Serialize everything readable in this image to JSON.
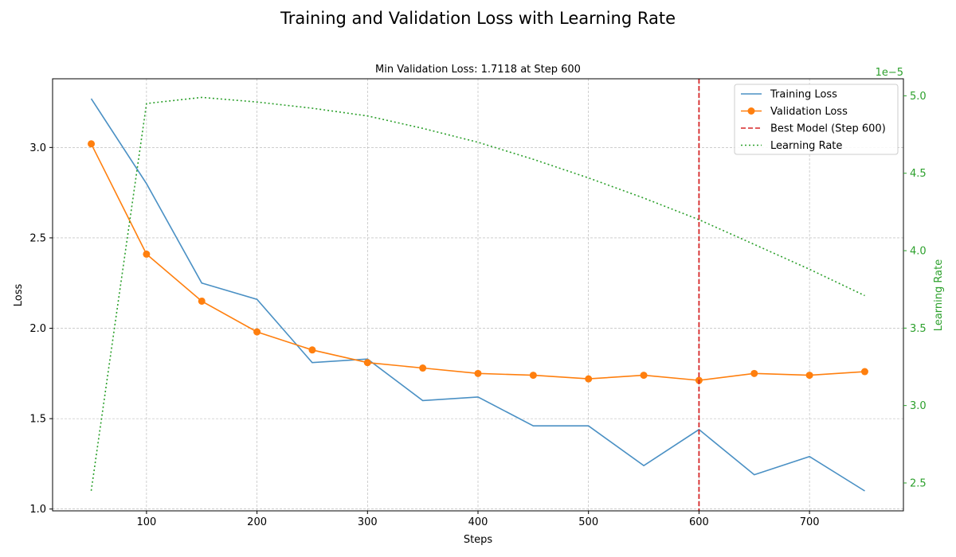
{
  "chart_data": {
    "type": "line",
    "title": "Training and Validation Loss with Learning Rate",
    "subtitle": "Min Validation Loss: 1.7118 at Step 600",
    "xlabel": "Steps",
    "ylabel": "Loss",
    "y2label": "Learning Rate",
    "y2_multiplier_label": "1e−5",
    "xlim": [
      15,
      785
    ],
    "ylim": [
      0.99,
      3.38
    ],
    "y2lim": [
      2.32,
      5.11
    ],
    "x_ticks": [
      100,
      200,
      300,
      400,
      500,
      600,
      700
    ],
    "y_ticks": [
      1.0,
      1.5,
      2.0,
      2.5,
      3.0
    ],
    "y_tick_labels": [
      "1.0",
      "1.5",
      "2.0",
      "2.5",
      "3.0"
    ],
    "y2_ticks": [
      2.5,
      3.0,
      3.5,
      4.0,
      4.5,
      5.0
    ],
    "y2_tick_labels": [
      "2.5",
      "3.0",
      "3.5",
      "4.0",
      "4.5",
      "5.0"
    ],
    "grid": true,
    "legend_position": "top-right",
    "x": [
      50,
      100,
      150,
      200,
      250,
      300,
      350,
      400,
      450,
      500,
      550,
      600,
      650,
      700,
      750
    ],
    "series": [
      {
        "name": "Training Loss",
        "axis": "left",
        "style": "solid",
        "color": "#4a90c4",
        "values": [
          3.27,
          2.8,
          2.25,
          2.16,
          1.81,
          1.83,
          1.6,
          1.62,
          1.46,
          1.46,
          1.24,
          1.44,
          1.19,
          1.29,
          1.1
        ]
      },
      {
        "name": "Validation Loss",
        "axis": "left",
        "style": "solid-marker",
        "color": "#ff7f0e",
        "values": [
          3.02,
          2.41,
          2.15,
          1.98,
          1.88,
          1.81,
          1.78,
          1.75,
          1.74,
          1.72,
          1.74,
          1.7118,
          1.75,
          1.74,
          1.76
        ]
      },
      {
        "name": "Learning Rate",
        "axis": "right",
        "style": "dotted",
        "color": "#2ca02c",
        "values": [
          2.45,
          4.95,
          4.99,
          4.96,
          4.92,
          4.87,
          4.79,
          4.7,
          4.59,
          4.47,
          4.34,
          4.2,
          4.04,
          3.88,
          3.71
        ]
      }
    ],
    "vline": {
      "x": 600,
      "label": "Best Model (Step 600)",
      "color": "#d62728"
    }
  }
}
